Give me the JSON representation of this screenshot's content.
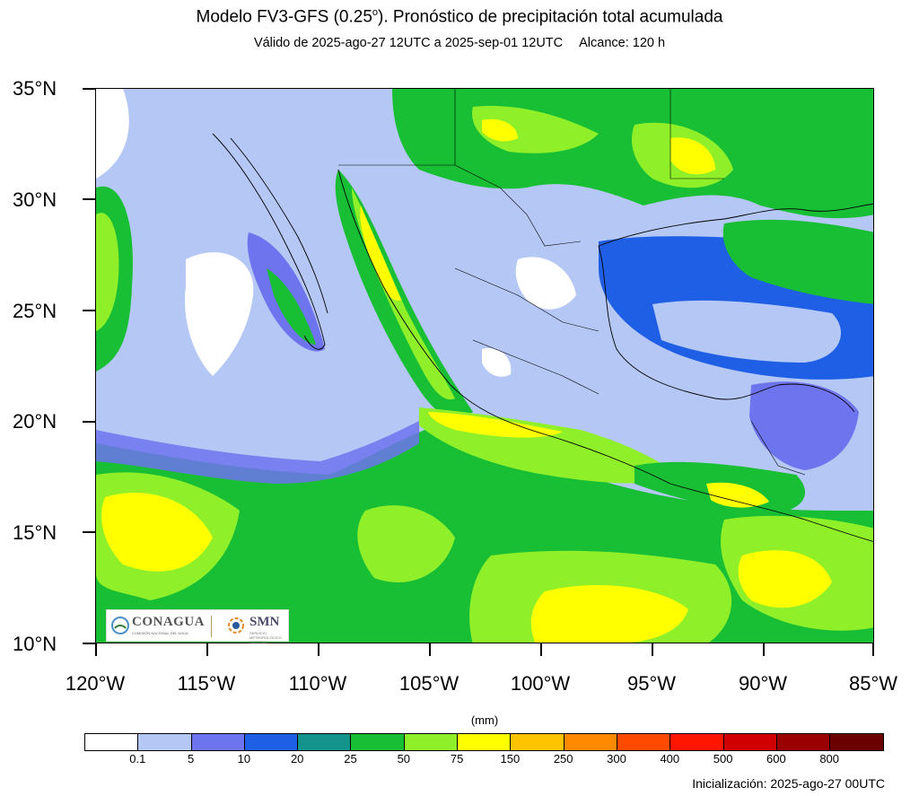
{
  "header": {
    "title_prefix": "Modelo FV3-GFS (0.25",
    "title_deg": "o",
    "title_suffix": "). Pronóstico de precipitación total acumulada",
    "valid": "Válido de 2025-ago-27 12UTC a 2025-sep-01 12UTC",
    "range": "Alcance: 120 h"
  },
  "map": {
    "lat_labels": [
      "35°N",
      "30°N",
      "25°N",
      "20°N",
      "15°N",
      "10°N"
    ],
    "lon_labels": [
      "120°W",
      "115°W",
      "110°W",
      "105°W",
      "100°W",
      "95°W",
      "90°W",
      "85°W"
    ]
  },
  "colorbar": {
    "unit": "(mm)",
    "colors": [
      "#ffffff",
      "#b4c7f5",
      "#6e73ee",
      "#1f5fe6",
      "#14938c",
      "#18bf34",
      "#8ff02a",
      "#ffff00",
      "#ffc400",
      "#ff8a00",
      "#ff4a00",
      "#ff1500",
      "#d10000",
      "#9a0000",
      "#6a0000"
    ],
    "labels": [
      "0.1",
      "5",
      "10",
      "20",
      "25",
      "50",
      "75",
      "150",
      "250",
      "300",
      "400",
      "500",
      "600",
      "800"
    ]
  },
  "logos": {
    "conagua": "CONAGUA",
    "conagua_sub": "COMISIÓN NACIONAL DEL AGUA",
    "smn": "SMN",
    "smn_sub": "SERVICIO METEOROLÓGICO NACIONAL"
  },
  "footer": {
    "init": "Inicialización: 2025-ago-27 00UTC"
  }
}
